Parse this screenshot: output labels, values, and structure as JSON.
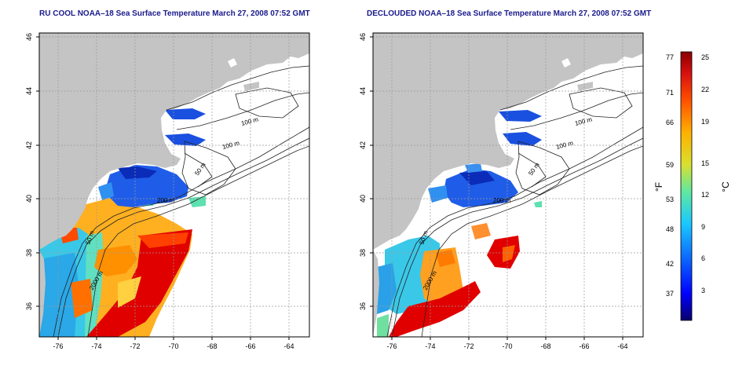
{
  "panels": [
    {
      "title": "RU COOL NOAA–18 Sea Surface Temperature March 27, 2008 07:52 GMT",
      "x_ticks": [
        "-76",
        "-74",
        "-72",
        "-70",
        "-68",
        "-66",
        "-64"
      ],
      "y_ticks": [
        "36",
        "38",
        "40",
        "42",
        "44",
        "46"
      ],
      "contour_labels": [
        "100 m",
        "100 m",
        "50 m",
        "200 m",
        "50 m",
        "2000 m"
      ]
    },
    {
      "title": "DECLOUDED NOAA–18 Sea Surface Temperature March 27, 2008 07:52 GMT",
      "x_ticks": [
        "-76",
        "-74",
        "-72",
        "-70",
        "-68",
        "-66",
        "-64"
      ],
      "y_ticks": [
        "36",
        "38",
        "40",
        "42",
        "44",
        "46"
      ],
      "contour_labels": [
        "100 m",
        "100 m",
        "50 m",
        "200 m",
        "50 m",
        "2000 m"
      ]
    }
  ],
  "colorbar": {
    "unit_f": "°F",
    "unit_c": "°C",
    "f_ticks": [
      "77",
      "71",
      "66",
      "59",
      "53",
      "48",
      "42",
      "37"
    ],
    "c_ticks": [
      "25",
      "22",
      "19",
      "15",
      "12",
      "9",
      "6",
      "3"
    ],
    "colors": [
      "#08006b",
      "#0000ff",
      "#0a60ff",
      "#1ac8ff",
      "#60e8a0",
      "#d8e030",
      "#ffb000",
      "#ff5000",
      "#d81010",
      "#8a0000"
    ]
  },
  "map_colors": {
    "land": "#c4c4c4",
    "ocean": "#ffffff",
    "grid": "#9a9a9a"
  }
}
